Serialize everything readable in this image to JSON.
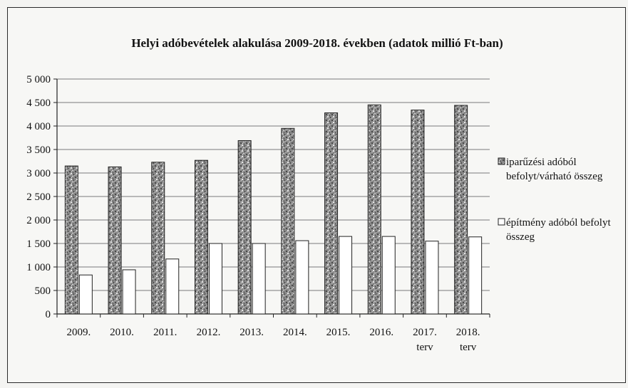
{
  "chart_data": {
    "type": "bar",
    "title": "Helyi adóbevételek alakulása 2009-2018. években (adatok millió Ft-ban)",
    "xlabel": "",
    "ylabel": "",
    "categories": [
      [
        "2009."
      ],
      [
        "2010."
      ],
      [
        "2011."
      ],
      [
        "2012."
      ],
      [
        "2013."
      ],
      [
        "2014."
      ],
      [
        "2015."
      ],
      [
        "2016."
      ],
      [
        "2017.",
        "terv"
      ],
      [
        "2018.",
        "terv"
      ]
    ],
    "series": [
      {
        "name": "iparűzési adóból befolyt/várható összeg",
        "legend_lines": [
          "iparűzési adóból",
          "befolyt/várható összeg"
        ],
        "pattern": "speckled-dark",
        "values": [
          3150,
          3130,
          3230,
          3270,
          3690,
          3950,
          4280,
          4450,
          4340,
          4440
        ]
      },
      {
        "name": "építmény adóból befolyt összeg",
        "legend_lines": [
          "építmény adóból befolyt",
          "összeg"
        ],
        "pattern": "white",
        "values": [
          830,
          940,
          1170,
          1500,
          1500,
          1560,
          1650,
          1650,
          1550,
          1640
        ]
      }
    ],
    "ylim": [
      0,
      5000
    ],
    "yticks": [
      0,
      500,
      1000,
      1500,
      2000,
      2500,
      3000,
      3500,
      4000,
      4500,
      5000
    ],
    "ytick_labels": [
      "0",
      "500",
      "1 000",
      "1 500",
      "2 000",
      "2 500",
      "3 000",
      "3 500",
      "4 000",
      "4 500",
      "5 000"
    ],
    "grid": true,
    "legend_position": "right"
  }
}
